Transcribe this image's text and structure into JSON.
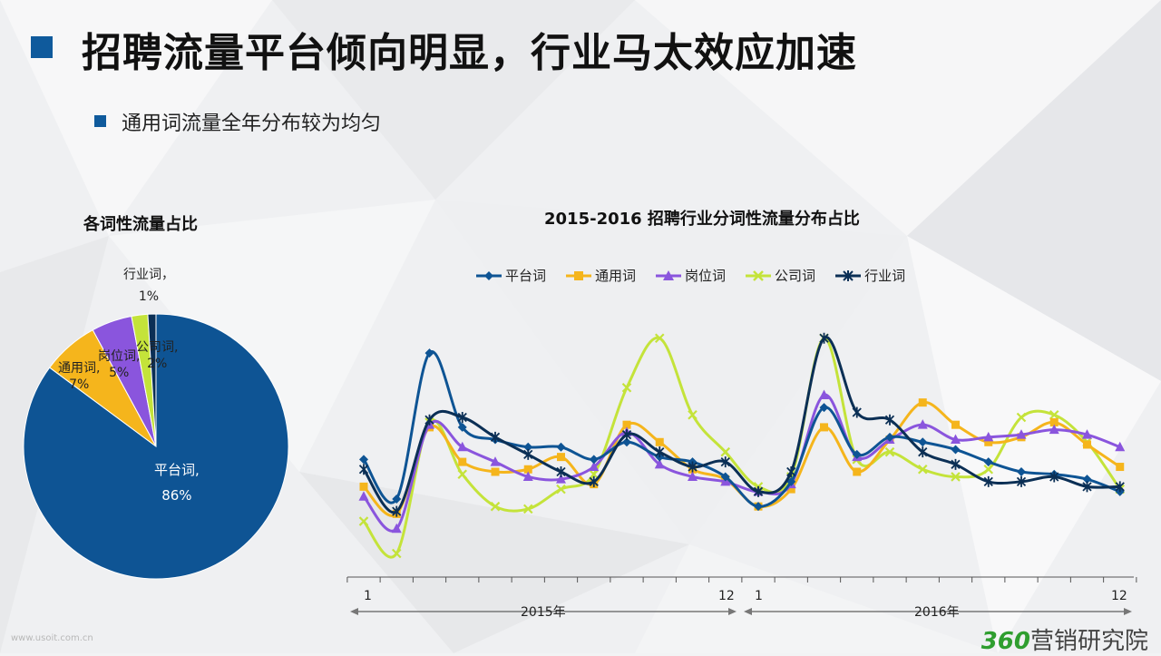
{
  "header": {
    "title": "招聘流量平台倾向明显，行业马太效应加速",
    "bullet": "通用词流量全年分布较为均匀"
  },
  "colors": {
    "accent": "#0f5a9c",
    "平台词": "#0e5494",
    "通用词": "#f5b51c",
    "岗位词": "#8a55dd",
    "公司词": "#c4e33a",
    "行业词": "#0b2f55"
  },
  "pie": {
    "title": "各词性流量占比",
    "labels": {
      "platform": {
        "name": "平台词,",
        "pct": "86%"
      },
      "general": {
        "name": "通用词,",
        "pct": "7%"
      },
      "position": {
        "name": "岗位词,",
        "pct": "5%"
      },
      "company": {
        "name": "公司词,",
        "pct": "2%"
      },
      "industry": {
        "name": "行业词，",
        "pct": "1%"
      }
    }
  },
  "line": {
    "title": "2015-2016 招聘行业分词性流量分布占比",
    "axis": {
      "start2015": "1",
      "end2015": "12",
      "year2015": "2015年",
      "start2016": "1",
      "end2016": "12",
      "year2016": "2016年"
    }
  },
  "logo": {
    "num": "360",
    "text": "营销研究院"
  },
  "watermark": "www.usoit.com.cn",
  "chart_data": [
    {
      "type": "pie",
      "title": "各词性流量占比",
      "categories": [
        "平台词",
        "通用词",
        "岗位词",
        "公司词",
        "行业词"
      ],
      "values": [
        86,
        7,
        5,
        2,
        1
      ]
    },
    {
      "type": "line",
      "title": "2015-2016 招聘行业分词性流量分布占比",
      "x": [
        "2015-1",
        "2015-2",
        "2015-3",
        "2015-4",
        "2015-5",
        "2015-6",
        "2015-7",
        "2015-8",
        "2015-9",
        "2015-10",
        "2015-11",
        "2015-12",
        "2016-1",
        "2016-2",
        "2016-3",
        "2016-4",
        "2016-5",
        "2016-6",
        "2016-7",
        "2016-8",
        "2016-9",
        "2016-10",
        "2016-11",
        "2016-12"
      ],
      "series": [
        {
          "name": "平台词",
          "values": [
            49,
            33,
            92,
            62,
            57,
            54,
            54,
            49,
            56,
            50,
            48,
            42,
            30,
            40,
            70,
            51,
            58,
            56,
            53,
            48,
            44,
            43,
            41,
            36
          ]
        },
        {
          "name": "通用词",
          "values": [
            38,
            27,
            62,
            48,
            44,
            45,
            50,
            39,
            63,
            56,
            45,
            41,
            30,
            37,
            62,
            44,
            57,
            72,
            63,
            56,
            58,
            64,
            55,
            46
          ]
        },
        {
          "name": "岗位词",
          "values": [
            34,
            21,
            63,
            54,
            48,
            42,
            41,
            46,
            60,
            47,
            42,
            40,
            36,
            39,
            75,
            50,
            57,
            63,
            57,
            58,
            59,
            61,
            59,
            54
          ]
        },
        {
          "name": "公司词",
          "values": [
            24,
            11,
            64,
            43,
            30,
            29,
            37,
            43,
            78,
            98,
            67,
            52,
            38,
            42,
            98,
            49,
            52,
            45,
            42,
            45,
            66,
            67,
            56,
            37
          ]
        },
        {
          "name": "行业词",
          "values": [
            45,
            28,
            65,
            66,
            58,
            51,
            44,
            40,
            59,
            52,
            46,
            48,
            36,
            44,
            98,
            68,
            65,
            52,
            47,
            40,
            40,
            42,
            38,
            38
          ]
        }
      ],
      "ylim": [
        0,
        110
      ],
      "legend": "top",
      "grid": false
    }
  ]
}
